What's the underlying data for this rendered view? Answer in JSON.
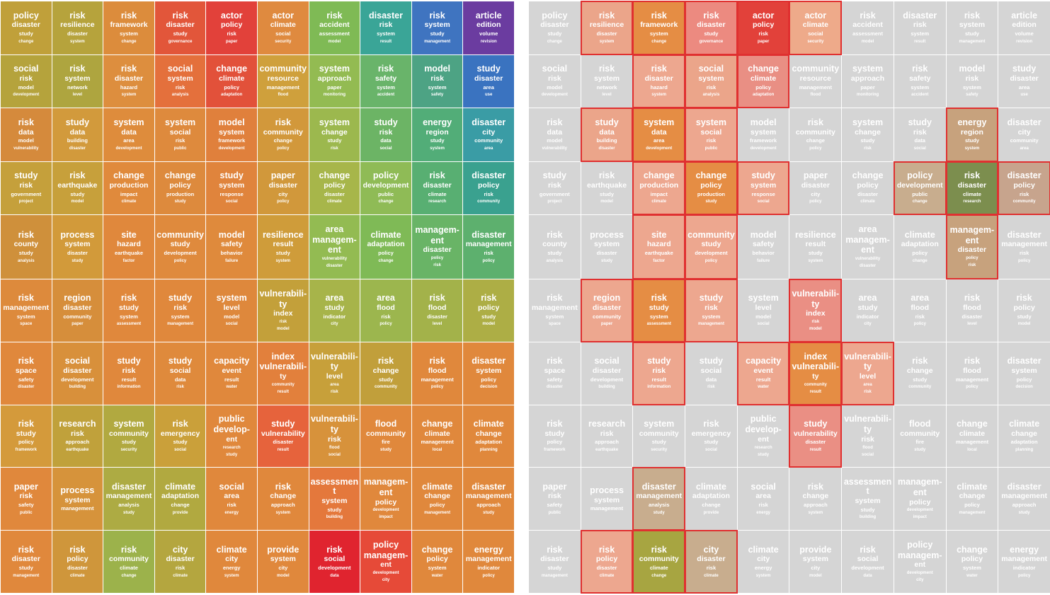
{
  "chart_data": {
    "type": "heatmap",
    "title": "",
    "rows": 10,
    "cols": 10,
    "cells": [
      {
        "words": [
          "policy",
          "disaster",
          "study",
          "change"
        ],
        "color": "#c0a03a"
      },
      {
        "words": [
          "risk",
          "resilience",
          "disaster",
          "system"
        ],
        "color": "#b6a33c"
      },
      {
        "words": [
          "risk",
          "framework",
          "system",
          "change"
        ],
        "color": "#dc8c3c"
      },
      {
        "words": [
          "risk",
          "disaster",
          "study",
          "governance"
        ],
        "color": "#e2563a"
      },
      {
        "words": [
          "actor",
          "policy",
          "risk",
          "paper"
        ],
        "color": "#e2413a"
      },
      {
        "words": [
          "actor",
          "climate",
          "social",
          "security"
        ],
        "color": "#df8a3f"
      },
      {
        "words": [
          "risk",
          "accident",
          "assessment",
          "model"
        ],
        "color": "#7fba55"
      },
      {
        "words": [
          "disaster",
          "risk",
          "system",
          "result"
        ],
        "color": "#3aa597"
      },
      {
        "words": [
          "risk",
          "system",
          "study",
          "management"
        ],
        "color": "#3f74c0"
      },
      {
        "words": [
          "article",
          "edition",
          "volume",
          "revision"
        ],
        "color": "#6b3ca0"
      },
      {
        "words": [
          "social",
          "risk",
          "model",
          "development"
        ],
        "color": "#b5a33c"
      },
      {
        "words": [
          "risk",
          "system",
          "network",
          "level"
        ],
        "color": "#aea53f"
      },
      {
        "words": [
          "risk",
          "disaster",
          "hazard",
          "system"
        ],
        "color": "#dd8e3e"
      },
      {
        "words": [
          "social",
          "system",
          "risk",
          "analysis"
        ],
        "color": "#e4703c"
      },
      {
        "words": [
          "change",
          "climate",
          "policy",
          "adaptation"
        ],
        "color": "#e2513a"
      },
      {
        "words": [
          "community",
          "resource",
          "management",
          "flood"
        ],
        "color": "#cfa03c"
      },
      {
        "words": [
          "system",
          "approach",
          "paper",
          "monitoring"
        ],
        "color": "#93bb52"
      },
      {
        "words": [
          "risk",
          "safety",
          "system",
          "accident"
        ],
        "color": "#69b46a"
      },
      {
        "words": [
          "model",
          "risk",
          "system",
          "safety"
        ],
        "color": "#4da384"
      },
      {
        "words": [
          "study",
          "disaster",
          "area",
          "use"
        ],
        "color": "#3a73c0"
      },
      {
        "words": [
          "risk",
          "data",
          "model",
          "vulnerability"
        ],
        "color": "#d58a3c"
      },
      {
        "words": [
          "study",
          "data",
          "building",
          "disaster"
        ],
        "color": "#d29a3c"
      },
      {
        "words": [
          "system",
          "data",
          "area",
          "development"
        ],
        "color": "#de8c3c"
      },
      {
        "words": [
          "system",
          "social",
          "risk",
          "public"
        ],
        "color": "#de8a3d"
      },
      {
        "words": [
          "model",
          "system",
          "framework",
          "development"
        ],
        "color": "#e0803c"
      },
      {
        "words": [
          "risk",
          "community",
          "change",
          "policy"
        ],
        "color": "#d2983b"
      },
      {
        "words": [
          "system",
          "change",
          "study",
          "risk"
        ],
        "color": "#9cb84e"
      },
      {
        "words": [
          "study",
          "risk",
          "data",
          "social"
        ],
        "color": "#6cb465"
      },
      {
        "words": [
          "energy",
          "region",
          "study",
          "system"
        ],
        "color": "#52ad78"
      },
      {
        "words": [
          "disaster",
          "city",
          "community",
          "area"
        ],
        "color": "#3a9ca5"
      },
      {
        "words": [
          "study",
          "risk",
          "government",
          "project"
        ],
        "color": "#c5a03b"
      },
      {
        "words": [
          "risk",
          "earthquake",
          "study",
          "model"
        ],
        "color": "#c7a03b"
      },
      {
        "words": [
          "change",
          "production",
          "impact",
          "climate"
        ],
        "color": "#e08a3c"
      },
      {
        "words": [
          "change",
          "policy",
          "production",
          "study"
        ],
        "color": "#dd8a3d"
      },
      {
        "words": [
          "study",
          "system",
          "response",
          "social"
        ],
        "color": "#e0843c"
      },
      {
        "words": [
          "paper",
          "disaster",
          "city",
          "policy"
        ],
        "color": "#d1983b"
      },
      {
        "words": [
          "change",
          "policy",
          "disaster",
          "climate"
        ],
        "color": "#a7b64a"
      },
      {
        "words": [
          "policy",
          "development",
          "public",
          "change"
        ],
        "color": "#8fbb56"
      },
      {
        "words": [
          "risk",
          "disaster",
          "climate",
          "research"
        ],
        "color": "#58af72"
      },
      {
        "words": [
          "disaster",
          "policy",
          "risk",
          "community"
        ],
        "color": "#3aa18f"
      },
      {
        "words": [
          "risk",
          "county",
          "study",
          "analysis"
        ],
        "color": "#cf903b"
      },
      {
        "words": [
          "process",
          "system",
          "disaster",
          "study"
        ],
        "color": "#d29a3a"
      },
      {
        "words": [
          "site",
          "hazard",
          "earthquake",
          "factor"
        ],
        "color": "#e0883c"
      },
      {
        "words": [
          "community",
          "study",
          "development",
          "policy"
        ],
        "color": "#df8a3d"
      },
      {
        "words": [
          "model",
          "safety",
          "behavior",
          "failure"
        ],
        "color": "#df8a3c"
      },
      {
        "words": [
          "resilience",
          "result",
          "study",
          "system"
        ],
        "color": "#cf9c3a"
      },
      {
        "words": [
          "area",
          "managem-",
          "ent",
          "vulnerability",
          "disaster"
        ],
        "color": "#93bb52"
      },
      {
        "words": [
          "climate",
          "adaptation",
          "policy",
          "change"
        ],
        "color": "#7fba56"
      },
      {
        "words": [
          "managem-",
          "ent",
          "disaster",
          "policy",
          "risk"
        ],
        "color": "#69b466"
      },
      {
        "words": [
          "disaster",
          "management",
          "risk",
          "policy"
        ],
        "color": "#5db06e"
      },
      {
        "words": [
          "risk",
          "management",
          "system",
          "space"
        ],
        "color": "#dd8a3c"
      },
      {
        "words": [
          "region",
          "disaster",
          "community",
          "paper"
        ],
        "color": "#d68e3b"
      },
      {
        "words": [
          "risk",
          "study",
          "system",
          "assessment"
        ],
        "color": "#e0883c"
      },
      {
        "words": [
          "study",
          "risk",
          "system",
          "management"
        ],
        "color": "#e0883c"
      },
      {
        "words": [
          "system",
          "level",
          "model",
          "social"
        ],
        "color": "#de883c"
      },
      {
        "words": [
          "vulnerabili-",
          "ty",
          "index",
          "risk",
          "model"
        ],
        "color": "#c3a03a"
      },
      {
        "words": [
          "area",
          "study",
          "indicator",
          "city"
        ],
        "color": "#a7b44a"
      },
      {
        "words": [
          "area",
          "flood",
          "risk",
          "policy"
        ],
        "color": "#9cb64e"
      },
      {
        "words": [
          "risk",
          "flood",
          "disaster",
          "level"
        ],
        "color": "#a3b24a"
      },
      {
        "words": [
          "risk",
          "policy",
          "study",
          "model"
        ],
        "color": "#adae45"
      },
      {
        "words": [
          "risk",
          "space",
          "safety",
          "disaster"
        ],
        "color": "#e0883c"
      },
      {
        "words": [
          "social",
          "disaster",
          "development",
          "building"
        ],
        "color": "#d8903b"
      },
      {
        "words": [
          "study",
          "risk",
          "result",
          "information"
        ],
        "color": "#e0883c"
      },
      {
        "words": [
          "study",
          "social",
          "data",
          "risk"
        ],
        "color": "#df8a3c"
      },
      {
        "words": [
          "capacity",
          "event",
          "result",
          "water"
        ],
        "color": "#e0883c"
      },
      {
        "words": [
          "index",
          "vulnerabili-",
          "ty",
          "community",
          "result"
        ],
        "color": "#e2803c"
      },
      {
        "words": [
          "vulnerabili-",
          "ty",
          "level",
          "area",
          "risk"
        ],
        "color": "#c7a03a"
      },
      {
        "words": [
          "risk",
          "change",
          "study",
          "community"
        ],
        "color": "#c19f3b"
      },
      {
        "words": [
          "risk",
          "flood",
          "management",
          "policy"
        ],
        "color": "#e0883c"
      },
      {
        "words": [
          "disaster",
          "system",
          "policy",
          "decision"
        ],
        "color": "#e0883c"
      },
      {
        "words": [
          "risk",
          "study",
          "policy",
          "framework"
        ],
        "color": "#d49a3b"
      },
      {
        "words": [
          "research",
          "risk",
          "approach",
          "earthquake"
        ],
        "color": "#c0a13b"
      },
      {
        "words": [
          "system",
          "community",
          "study",
          "security"
        ],
        "color": "#b1a940"
      },
      {
        "words": [
          "risk",
          "emergency",
          "study",
          "social"
        ],
        "color": "#caa03a"
      },
      {
        "words": [
          "public",
          "develop-",
          "ent",
          "research",
          "study"
        ],
        "color": "#e0883c"
      },
      {
        "words": [
          "study",
          "vulnerability",
          "disaster",
          "result"
        ],
        "color": "#e6633c"
      },
      {
        "words": [
          "vulnerabili-",
          "ty",
          "risk",
          "flood",
          "social"
        ],
        "color": "#d7923b"
      },
      {
        "words": [
          "flood",
          "community",
          "fire",
          "study"
        ],
        "color": "#e0883c"
      },
      {
        "words": [
          "change",
          "climate",
          "management",
          "local"
        ],
        "color": "#e0883c"
      },
      {
        "words": [
          "climate",
          "change",
          "adaptation",
          "planning"
        ],
        "color": "#e0883c"
      },
      {
        "words": [
          "paper",
          "risk",
          "safety",
          "public"
        ],
        "color": "#e0883c"
      },
      {
        "words": [
          "process",
          "system",
          "management"
        ],
        "color": "#d6933b"
      },
      {
        "words": [
          "disaster",
          "management",
          "analysis",
          "study"
        ],
        "color": "#adab43"
      },
      {
        "words": [
          "climate",
          "adaptation",
          "change",
          "provide"
        ],
        "color": "#b1a940"
      },
      {
        "words": [
          "social",
          "area",
          "risk",
          "energy"
        ],
        "color": "#e0883c"
      },
      {
        "words": [
          "risk",
          "change",
          "approach",
          "system"
        ],
        "color": "#e0883c"
      },
      {
        "words": [
          "assessment",
          "system",
          "study",
          "building"
        ],
        "color": "#e4783c"
      },
      {
        "words": [
          "managem-",
          "ent",
          "policy",
          "development",
          "impact"
        ],
        "color": "#e0883c"
      },
      {
        "words": [
          "climate",
          "change",
          "policy",
          "management"
        ],
        "color": "#e0883c"
      },
      {
        "words": [
          "disaster",
          "management",
          "approach",
          "study"
        ],
        "color": "#e0883c"
      },
      {
        "words": [
          "risk",
          "disaster",
          "study",
          "management"
        ],
        "color": "#e0883c"
      },
      {
        "words": [
          "risk",
          "policy",
          "disaster",
          "climate"
        ],
        "color": "#cf963b"
      },
      {
        "words": [
          "risk",
          "community",
          "climate",
          "change"
        ],
        "color": "#9cb24b"
      },
      {
        "words": [
          "city",
          "disaster",
          "risk",
          "climate"
        ],
        "color": "#b4a63f"
      },
      {
        "words": [
          "climate",
          "city",
          "energy",
          "system"
        ],
        "color": "#e0883c"
      },
      {
        "words": [
          "provide",
          "system",
          "city",
          "model"
        ],
        "color": "#e0883c"
      },
      {
        "words": [
          "risk",
          "social",
          "development",
          "data"
        ],
        "color": "#e0242f"
      },
      {
        "words": [
          "policy",
          "managem-",
          "ent",
          "development",
          "city"
        ],
        "color": "#e64a38"
      },
      {
        "words": [
          "change",
          "policy",
          "system",
          "water"
        ],
        "color": "#e0883c"
      },
      {
        "words": [
          "energy",
          "management",
          "indicator",
          "policy"
        ],
        "color": "#e0883c"
      }
    ],
    "highlight": {
      "gray_color": "#d5d5d5",
      "border_color": "#e03030",
      "cells": [
        {
          "index": 1,
          "color": "#eba58a"
        },
        {
          "index": 2,
          "color": "#e58d44"
        },
        {
          "index": 3,
          "color": "#ec8a80"
        },
        {
          "index": 4,
          "color": "#e2413a"
        },
        {
          "index": 5,
          "color": "#eeaa8a"
        },
        {
          "index": 12,
          "color": "#eda78f"
        },
        {
          "index": 13,
          "color": "#eba58a"
        },
        {
          "index": 14,
          "color": "#e98f84"
        },
        {
          "index": 21,
          "color": "#eba58a"
        },
        {
          "index": 22,
          "color": "#e58d44"
        },
        {
          "index": 23,
          "color": "#eda78f"
        },
        {
          "index": 28,
          "color": "#c7a27d"
        },
        {
          "index": 32,
          "color": "#eda78f"
        },
        {
          "index": 33,
          "color": "#e58d44"
        },
        {
          "index": 34,
          "color": "#eda78f"
        },
        {
          "index": 37,
          "color": "#c8ad8e"
        },
        {
          "index": 38,
          "color": "#7c8e4e"
        },
        {
          "index": 39,
          "color": "#c7a48d"
        },
        {
          "index": 42,
          "color": "#eda78f"
        },
        {
          "index": 43,
          "color": "#eda78f"
        },
        {
          "index": 48,
          "color": "#c7a27d"
        },
        {
          "index": 51,
          "color": "#eda78f"
        },
        {
          "index": 52,
          "color": "#e58d44"
        },
        {
          "index": 53,
          "color": "#eda78f"
        },
        {
          "index": 55,
          "color": "#ea8f84"
        },
        {
          "index": 62,
          "color": "#eda78f"
        },
        {
          "index": 64,
          "color": "#eda78f"
        },
        {
          "index": 65,
          "color": "#e58d44"
        },
        {
          "index": 66,
          "color": "#eda78f"
        },
        {
          "index": 75,
          "color": "#ea8f84"
        },
        {
          "index": 82,
          "color": "#c8ad8e"
        },
        {
          "index": 91,
          "color": "#eda78f"
        },
        {
          "index": 92,
          "color": "#a7a541"
        },
        {
          "index": 93,
          "color": "#c8ad8e"
        }
      ]
    }
  }
}
